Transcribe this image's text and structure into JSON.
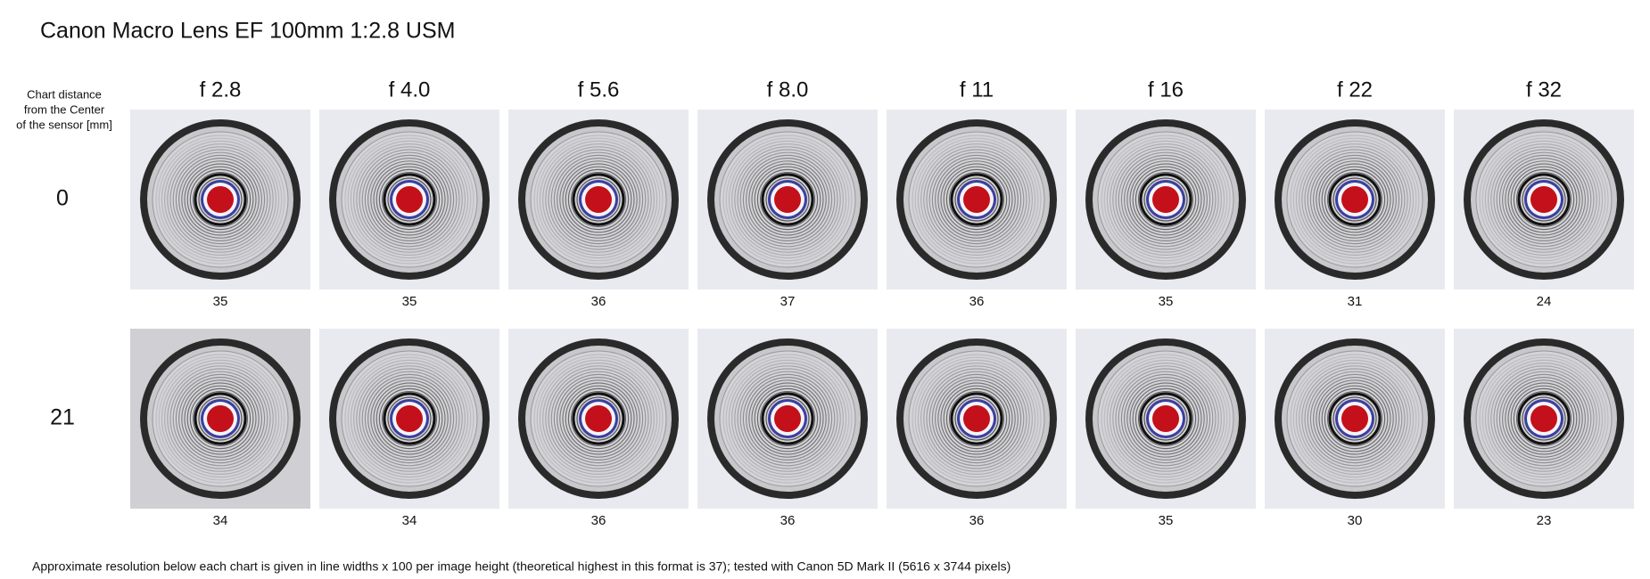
{
  "title": "Canon Macro Lens EF 100mm 1:2.8 USM",
  "row_header": [
    "Chart distance",
    "from the Center",
    "of the sensor [mm]"
  ],
  "columns": [
    "f 2.8",
    "f 4.0",
    "f 5.6",
    "f 8.0",
    "f 11",
    "f 16",
    "f 22",
    "f 32"
  ],
  "rows": [
    {
      "distance": 0,
      "resolutions": [
        35,
        35,
        36,
        37,
        36,
        35,
        31,
        24
      ]
    },
    {
      "distance": 21,
      "resolutions": [
        34,
        34,
        36,
        36,
        36,
        35,
        30,
        23
      ]
    }
  ],
  "footnote": "Approximate resolution below each chart is given in line widths x 100 per image height (theoretical highest in this format is 37); tested with Canon 5D Mark II (5616 x 3744 pixels)"
}
